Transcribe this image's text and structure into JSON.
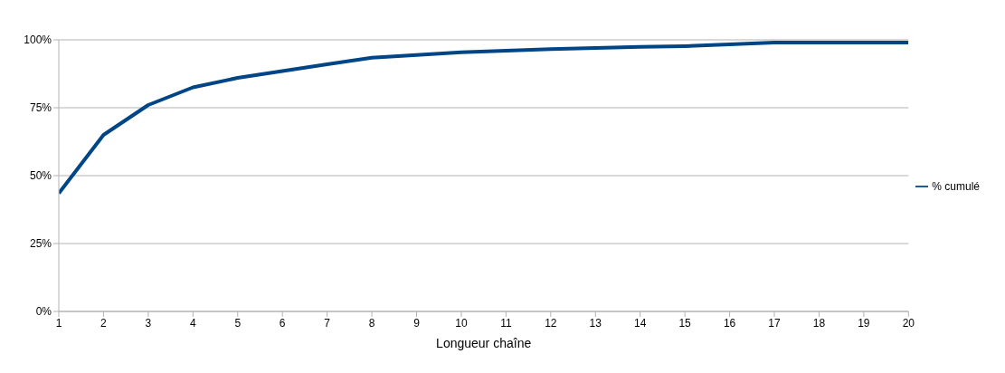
{
  "chart_data": {
    "type": "line",
    "xlabel": "Longueur chaîne",
    "x": [
      1,
      2,
      3,
      4,
      5,
      6,
      7,
      8,
      9,
      10,
      11,
      12,
      13,
      14,
      15,
      16,
      17,
      18,
      19,
      20
    ],
    "series": [
      {
        "name": "% cumulé",
        "color": "#004586",
        "values": [
          43.5,
          65,
          76,
          82.5,
          86,
          88.5,
          91,
          93.4,
          94.4,
          95.4,
          96,
          96.6,
          97,
          97.4,
          97.7,
          98.3,
          99,
          99,
          99,
          99
        ]
      }
    ],
    "xlim": [
      1,
      20
    ],
    "xticks": [
      1,
      2,
      3,
      4,
      5,
      6,
      7,
      8,
      9,
      10,
      11,
      12,
      13,
      14,
      15,
      16,
      17,
      18,
      19,
      20
    ],
    "ylim": [
      0,
      100
    ],
    "yticks": [
      {
        "value": 0,
        "label": "0%"
      },
      {
        "value": 25,
        "label": "25%"
      },
      {
        "value": 50,
        "label": "50%"
      },
      {
        "value": 75,
        "label": "75%"
      },
      {
        "value": 100,
        "label": "100%"
      }
    ],
    "grid": "y",
    "legend": "right",
    "marker": "none",
    "line_style": "solid"
  }
}
